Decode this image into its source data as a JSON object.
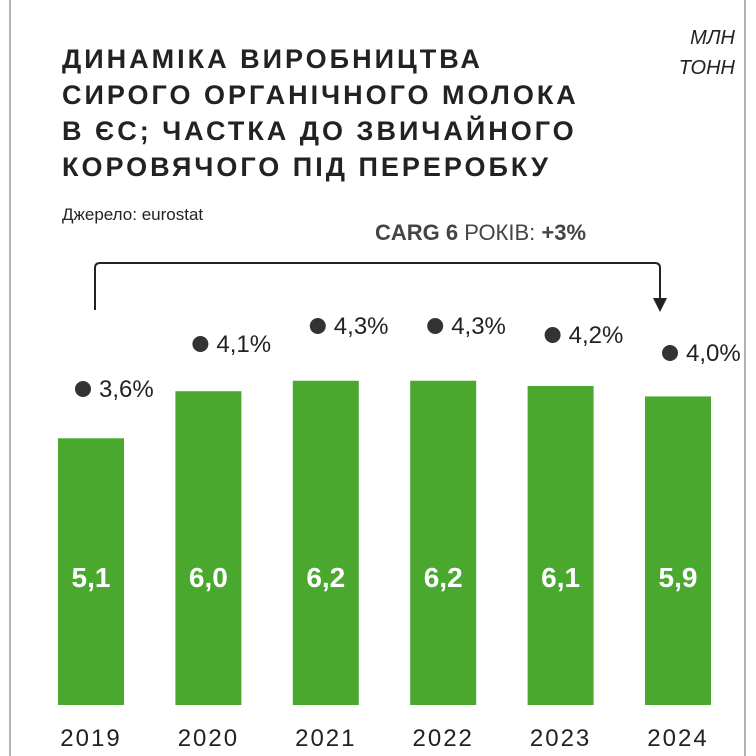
{
  "chart_data": {
    "type": "bar",
    "title": [
      "ДИНАМІКА ВИРОБНИЦТВА",
      "СИРОГО ОРГАНІЧНОГО МОЛОКА",
      "В ЄС; ЧАСТКА ДО ЗВИЧАЙНОГО",
      "КОРОВЯЧОГО ПІД ПЕРЕРОБКУ"
    ],
    "unit": [
      "МЛН",
      "ТОНН"
    ],
    "source": "Джерело: eurostat",
    "annotation": [
      "CARG 6",
      "РОКІВ:",
      "+3%"
    ],
    "categories": [
      "2019",
      "2020",
      "2021",
      "2022",
      "2023",
      "2024"
    ],
    "series": [
      {
        "name": "production",
        "color": "#4aa82f",
        "values": [
          5.1,
          6.0,
          6.2,
          6.2,
          6.1,
          5.9
        ],
        "value_labels": [
          "5,1",
          "6,0",
          "6,2",
          "6,2",
          "6,1",
          "5,9"
        ]
      },
      {
        "name": "share",
        "color": "#333333",
        "values": [
          3.6,
          4.1,
          4.3,
          4.3,
          4.2,
          4.0
        ],
        "value_labels": [
          "3,6%",
          "4,1%",
          "4,3%",
          "4,3%",
          "4,2%",
          "4,0%"
        ]
      }
    ]
  }
}
